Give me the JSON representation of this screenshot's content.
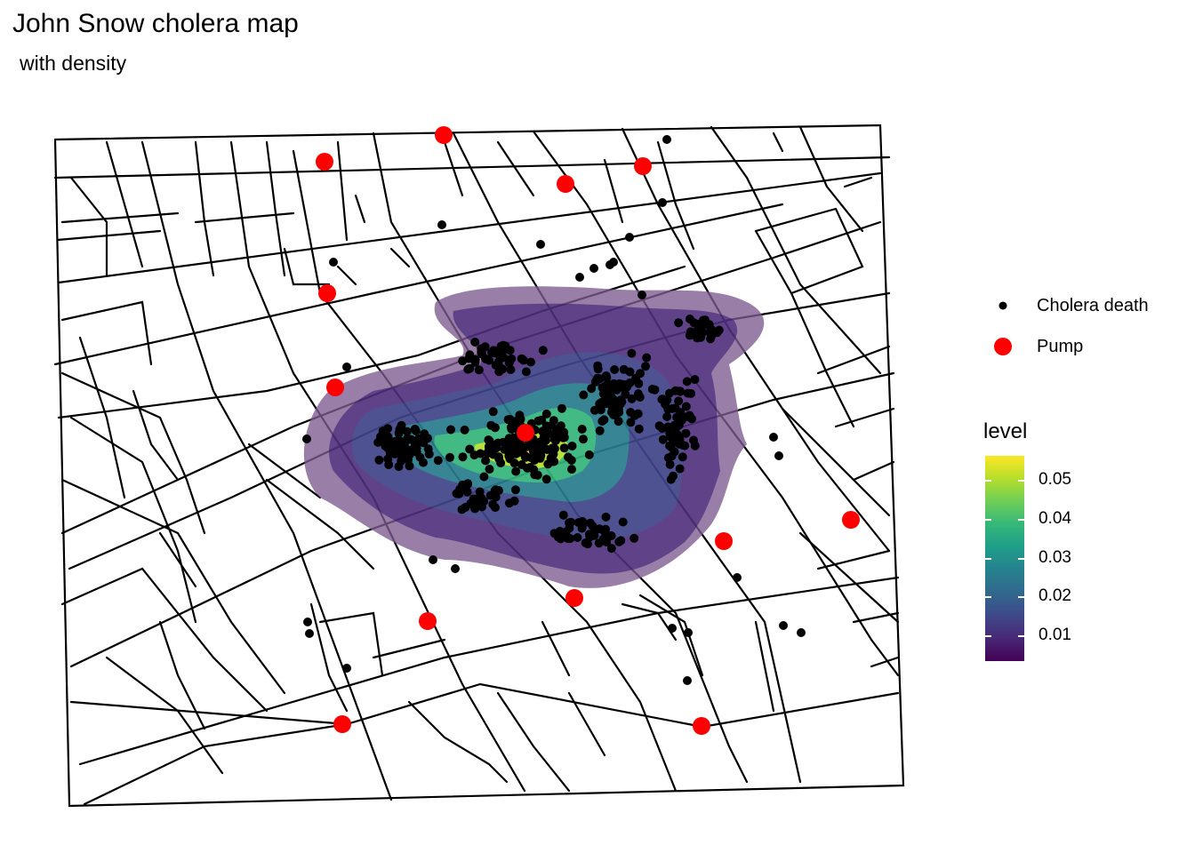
{
  "title": "John Snow cholera map",
  "subtitle": "with density",
  "legend": {
    "items": [
      {
        "label": "Cholera death",
        "color": "#000000",
        "symbol": "small-dot"
      },
      {
        "label": "Pump",
        "color": "#ff0000",
        "symbol": "large-dot"
      }
    ]
  },
  "colorbar": {
    "title": "level",
    "palette": "viridis",
    "ticks": [
      {
        "value": 0.05,
        "label": "0.05"
      },
      {
        "value": 0.04,
        "label": "0.04"
      },
      {
        "value": 0.03,
        "label": "0.03"
      },
      {
        "value": 0.02,
        "label": "0.02"
      },
      {
        "value": 0.01,
        "label": "0.01"
      }
    ]
  },
  "colors": {
    "street": "#000000",
    "death": "#000000",
    "pump": "#ff0000"
  }
}
